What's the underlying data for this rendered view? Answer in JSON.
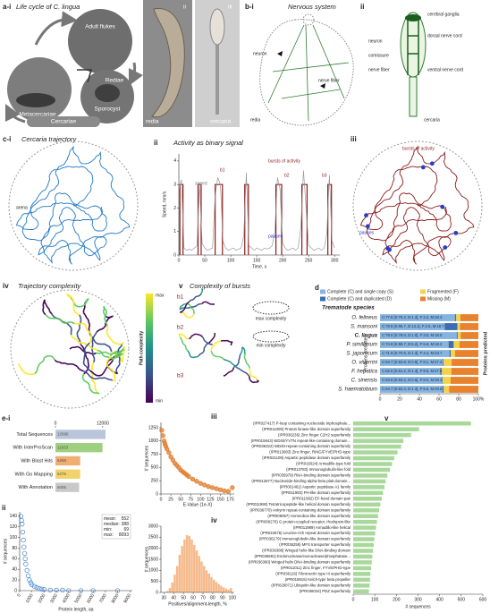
{
  "panels": {
    "a": {
      "label": "a-i",
      "title": "Life cycle of C. lingua",
      "stages": [
        "Adult flukes",
        "Sporocyst",
        "Rediae",
        "Metacercariae",
        "Cercariae"
      ],
      "photo_labels": [
        {
          "label": "ii",
          "caption": "redia"
        },
        {
          "label": "iii",
          "caption": "cercaria"
        }
      ]
    },
    "b": {
      "label": "b-i",
      "title": "Nervous system",
      "redia": [
        "neuron",
        "nerve fiber",
        "redia"
      ],
      "label_ii": "ii",
      "cercaria": [
        "cerebral ganglia",
        "dorsal nerve cord",
        "neuron",
        "comissure",
        "nerve fiber",
        "ventral nerve cord",
        "cercaria"
      ]
    },
    "c": {
      "label": "c-i",
      "title": "Cercaria trajectory",
      "arena": "arena",
      "iii": {
        "label": "iii",
        "bursts": "bursts of activity",
        "pauses": "pauses"
      },
      "iv": {
        "label": "iv",
        "title": "Trajectory complexity",
        "colorbar": {
          "title": "Path complexity",
          "max": "max",
          "min": "min"
        }
      },
      "v": {
        "label": "v",
        "title": "Complexity of bursts",
        "bursts": [
          "b1",
          "b2",
          "b3"
        ],
        "max": "max complexity",
        "min": "min complexity"
      }
    }
  },
  "chart_data": [
    {
      "type": "line",
      "label": "ii",
      "title": "Activity as binary signal",
      "xlabel": "Time, s",
      "ylabel": "Speed, mm/s",
      "xlim": [
        0,
        310
      ],
      "ylim": [
        0,
        4.3
      ],
      "xticks": [
        0,
        50,
        100,
        150,
        200,
        250,
        300
      ],
      "yticks": [
        0,
        1,
        2,
        3,
        4
      ],
      "annotations": [
        "speed",
        "b1",
        "b2",
        "b3",
        "bursts of activity",
        "pauses"
      ],
      "x": [
        0,
        5,
        10,
        15,
        20,
        25,
        30,
        35,
        40,
        45,
        50,
        55,
        60,
        65,
        70,
        75,
        80,
        85,
        90,
        95,
        100,
        105,
        110,
        115,
        120,
        125,
        130,
        135,
        140,
        145,
        150,
        155,
        160,
        165,
        170,
        175,
        180,
        185,
        190,
        195,
        200,
        205,
        210,
        215,
        220,
        225,
        230,
        235,
        240,
        245,
        250,
        255,
        260,
        265,
        270,
        275,
        280,
        285,
        290,
        295,
        300
      ],
      "series": [
        {
          "color": "#9a9a9a",
          "values": [
            2.8,
            3.2,
            0.3,
            0.2,
            0.25,
            0.2,
            0.3,
            0.4,
            3.0,
            0.5,
            0.3,
            0.2,
            0.25,
            0.3,
            2.5,
            3.3,
            3.0,
            0.6,
            0.3,
            0.2,
            0.25,
            0.3,
            0.2,
            0.25,
            0.3,
            0.8,
            3.5,
            0.4,
            0.3,
            0.2,
            0.3,
            0.25,
            0.2,
            0.3,
            0.25,
            0.3,
            0.4,
            1.0,
            3.3,
            2.8,
            0.5,
            0.3,
            0.2,
            0.25,
            0.3,
            0.2,
            0.3,
            1.2,
            3.6,
            2.0,
            0.4,
            0.3,
            0.2,
            0.25,
            0.3,
            0.2,
            0.3,
            0.9,
            3.4,
            0.6,
            0.3
          ]
        }
      ],
      "bursts": [
        [
          2,
          8
        ],
        [
          37,
          43
        ],
        [
          70,
          84
        ],
        [
          127,
          134
        ],
        [
          187,
          198
        ],
        [
          237,
          247
        ],
        [
          287,
          294
        ]
      ],
      "burst_level": 3,
      "burst_color": "#8b1a1a"
    },
    {
      "type": "bar",
      "orientation": "horizontal",
      "stacked": true,
      "label": "d",
      "header": "Trematode species",
      "ylabel": "Proteins predicted",
      "categories": [
        "O. felineus",
        "S. mansoni",
        "C. lingua",
        "P. simillimum",
        "S. japonicum",
        "O. viverrini",
        "F. hepatica",
        "C. sinensis",
        "S. haematobium"
      ],
      "highlight_index": 2,
      "series": [
        {
          "name": "Complete (C) and single copy (S)",
          "color": "#86b4e0",
          "values": [
            76.2,
            65.7,
            78.0,
            69.7,
            70.6,
            63.8,
            61.2,
            63.2,
            63.4
          ]
        },
        {
          "name": "Complete (C) and duplicated (D)",
          "color": "#3b6db3",
          "values": [
            1.3,
            13.1,
            1.0,
            5.2,
            1.3,
            0.9,
            1.4,
            0.6,
            1.3
          ]
        },
        {
          "name": "Fragmented (F)",
          "color": "#f3d34a",
          "values": [
            4.2,
            2.5,
            3.0,
            5.8,
            4.4,
            8.1,
            9.9,
            8.0,
            5.5
          ]
        },
        {
          "name": "Missing (M)",
          "color": "#e9822e",
          "values": [
            18.3,
            18.7,
            18.0,
            19.3,
            23.7,
            27.2,
            27.6,
            28.2,
            29.8
          ]
        }
      ],
      "bar_labels": [
        "C:77.5 [S:76.2, D:1.3], F:4.2, M:18.3",
        "C:78.8 [S:65.7, D:13.1], F:2.5, M:18.7",
        "C:79.0 [S:78.0, D:1.0], F:3.0, M:18.0",
        "C:74.9 [S:69.7, D:5.2], F:5.8, M:19.3",
        "C:71.9 [S:70.6, D:1.3], F:4.4, M:23.7",
        "C:64.7 [S:63.8, D:0.9], F:8.1, M:27.2",
        "C:62.6 [S:61.2, D:1.4], F:9.9, M:27.6",
        "C:63.9 [S:63.2, D:0.6], F:8.0, M:28.2",
        "C:64.7 [S:63.4, D:1.3], F:5.5, M:29.8"
      ],
      "xlim": [
        0,
        100
      ],
      "xticks": [
        0,
        20,
        40,
        60,
        80,
        {
          "value": 100,
          "label": "100%"
        }
      ]
    },
    {
      "type": "bar",
      "orientation": "horizontal",
      "label": "e-i",
      "xaxis": "top",
      "categories": [
        "Total Sequences",
        "With InterProScan",
        "With Blast Hits",
        "With Go Mapping",
        "With Annotation"
      ],
      "values": [
        12696,
        11933,
        6288,
        6276,
        6006
      ],
      "colors": [
        "#b9c5d8",
        "#9fd07f",
        "#f0ae72",
        "#f2d36a",
        "#c8c8c8"
      ],
      "xlim": [
        0,
        12700
      ],
      "xticks": [
        0,
        12000
      ]
    },
    {
      "type": "scatter",
      "label": "ii",
      "xlabel": "Protein length, aa",
      "ylabel": "# sequences",
      "color": "#3d7fcf",
      "hollow": true,
      "x": [
        100,
        150,
        200,
        250,
        300,
        350,
        400,
        450,
        500,
        600,
        700,
        800,
        900,
        1000,
        1200,
        1400,
        1600,
        1800,
        2000,
        2500,
        3000,
        3500,
        4000,
        5000,
        6000,
        8000
      ],
      "values": [
        140,
        132,
        125,
        110,
        95,
        82,
        70,
        60,
        50,
        38,
        28,
        20,
        15,
        11,
        8,
        6,
        4,
        3,
        2,
        1,
        1,
        1,
        0,
        0,
        0,
        0
      ],
      "xlim": [
        0,
        9200
      ],
      "ylim": [
        0,
        148
      ],
      "xticks": [
        0,
        1000,
        2000,
        3000,
        4000,
        5000,
        6000,
        7000,
        8000,
        9000
      ],
      "yticks": [
        0,
        20,
        40,
        60,
        80,
        100,
        120,
        140
      ],
      "stats": [
        {
          "label": "mean:",
          "value": 552
        },
        {
          "label": "median:",
          "value": 388
        },
        {
          "label": "min:",
          "value": 69
        },
        {
          "label": "max:",
          "value": 8093
        }
      ]
    },
    {
      "type": "scatter",
      "label": "iii",
      "xlabel": "E-Value (1e-X)",
      "ylabel": "# sequences",
      "color": "#e07b2a",
      "x": [
        2,
        5,
        8,
        10,
        12,
        15,
        20,
        25,
        30,
        35,
        40,
        45,
        50,
        55,
        60,
        65,
        70,
        80,
        90,
        100,
        110,
        120,
        130,
        140,
        150,
        160,
        170,
        180
      ],
      "values": [
        1200,
        1100,
        1000,
        950,
        900,
        850,
        780,
        700,
        640,
        580,
        540,
        500,
        450,
        420,
        390,
        360,
        330,
        280,
        240,
        200,
        170,
        140,
        120,
        100,
        80,
        60,
        50,
        120
      ],
      "xlim": [
        0,
        185
      ],
      "ylim": [
        0,
        1350
      ],
      "xticks": [
        0,
        25,
        50,
        75,
        100,
        125,
        150,
        175
      ],
      "yticks": [
        0,
        250,
        500,
        750,
        1000,
        1250
      ]
    },
    {
      "type": "histogram",
      "label": "iv",
      "xlabel": "Positives/alignment-length, %",
      "ylabel": "# sequences",
      "color": "#f5b98a",
      "bins": [
        30,
        32.5,
        35,
        37.5,
        40,
        42.5,
        45,
        47.5,
        50,
        52.5,
        55,
        57.5,
        60,
        62.5,
        65,
        67.5,
        70,
        72.5,
        75,
        77.5,
        80,
        82.5,
        85,
        87.5,
        90,
        92.5,
        95,
        97.5,
        100
      ],
      "values": [
        20,
        60,
        200,
        450,
        800,
        1200,
        1700,
        2100,
        2400,
        2600,
        2550,
        2400,
        2150,
        1900,
        1650,
        1400,
        1200,
        1000,
        850,
        700,
        580,
        470,
        380,
        300,
        230,
        170,
        120,
        200
      ],
      "xlim": [
        27,
        102
      ],
      "ylim": [
        0,
        3000
      ],
      "xticks": [
        30,
        40,
        50,
        60,
        70,
        80,
        90,
        100
      ],
      "yticks": [
        0,
        500,
        1000,
        1500,
        2000,
        2500,
        3000
      ]
    },
    {
      "type": "bar",
      "orientation": "horizontal",
      "label": "v",
      "xlabel": "# sequences",
      "color": "#a8d89a",
      "categories": [
        "(IPR027417) P-loop containing nucleoside triphosphate...",
        "(IPR011009) Protein kinase-like domain superfamily",
        "(IPR036236) Zinc finger C2H2 superfamily",
        "(IPR015943) WD40/YVTN repeat-like-containing domain...",
        "(IPR036322) WD40-repeat-containing domain superfamily",
        "(IPR013083) Zinc finger, RING/FYVE/PHD-type",
        "(IPR021109) Aspartic peptidase domain superfamily",
        "(IPR016024) Armadillo-type fold",
        "(IPR013783) Immunoglobulin-like fold",
        "(IPR035979) RNA-binding domain superfamily",
        "(IPR012677) Nucleotide-binding alpha-beta plait domain...",
        "(IPR001461) Aspartic peptidase A1 family",
        "(IPR011993) PH-like domain superfamily",
        "(IPR011992) EF-hand domain pair",
        "(IPR011990) Tetratricopeptide-like helical domain superfamily",
        "(IPR036770) Ankyrin repeat-containing domain superfamily",
        "(IPR009057) Homeobox-like domain superfamily",
        "(IPR000276) G protein-coupled receptor, rhodopsin-like",
        "(IPR011989) Armadillo-like helical",
        "(IPR032675) Leucine-rich repeat domain superfamily",
        "(IPR036179) Immunoglobulin-like domain superfamily",
        "(IPR036259) MFS transporter superfamily",
        "(IPR036388) Winged helix-like DNA-binding domain",
        "(IPR036691) Endonuclease/exonuclease/phosphatase...",
        "(IPR036390) Winged helix DNA-binding domain superfamily",
        "(IPR011011) Zinc finger, FYVE/PHD-type",
        "(IPR036116) Fibronectin type III superfamily",
        "(IPR015915) Kelch-type beta propeller",
        "(IPR029071) Ubiquitin-like domain superfamily",
        "(IPR036034) PDZ superfamily"
      ],
      "values": [
        545,
        305,
        268,
        232,
        222,
        205,
        190,
        180,
        170,
        158,
        150,
        145,
        138,
        132,
        126,
        120,
        115,
        110,
        106,
        102,
        98,
        95,
        92,
        89,
        86,
        83,
        80,
        78,
        76,
        73
      ],
      "xlim": [
        0,
        600
      ],
      "xticks": [
        0,
        100,
        200,
        300,
        400,
        500,
        600
      ]
    }
  ]
}
